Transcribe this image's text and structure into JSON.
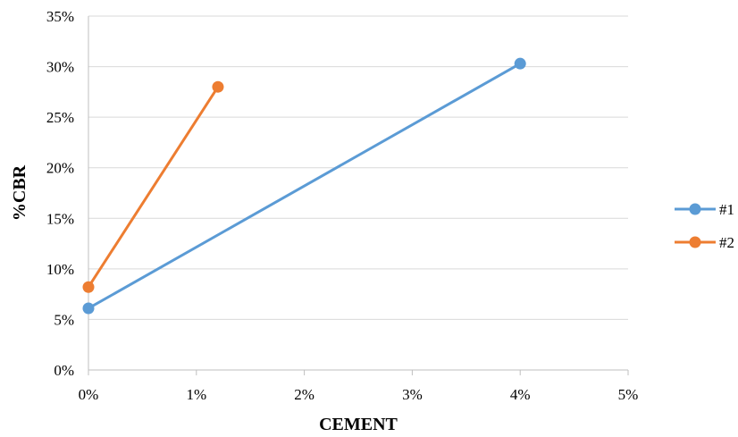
{
  "chart_data": {
    "type": "line",
    "title": "",
    "xlabel": "CEMENT",
    "ylabel": "%CBR",
    "xlim": [
      0,
      5
    ],
    "ylim": [
      0,
      35
    ],
    "x_ticks": [
      "0%",
      "1%",
      "2%",
      "3%",
      "4%",
      "5%"
    ],
    "y_ticks": [
      "0%",
      "5%",
      "10%",
      "15%",
      "20%",
      "25%",
      "30%",
      "35%"
    ],
    "grid": "horizontal",
    "legend_position": "right",
    "series": [
      {
        "name": "#1",
        "color": "#5B9BD5",
        "points": [
          {
            "x": 0,
            "y": 6.1
          },
          {
            "x": 4,
            "y": 30.3
          }
        ]
      },
      {
        "name": "#2",
        "color": "#ED7D31",
        "points": [
          {
            "x": 0,
            "y": 8.2
          },
          {
            "x": 1.2,
            "y": 28.0
          }
        ]
      }
    ]
  }
}
